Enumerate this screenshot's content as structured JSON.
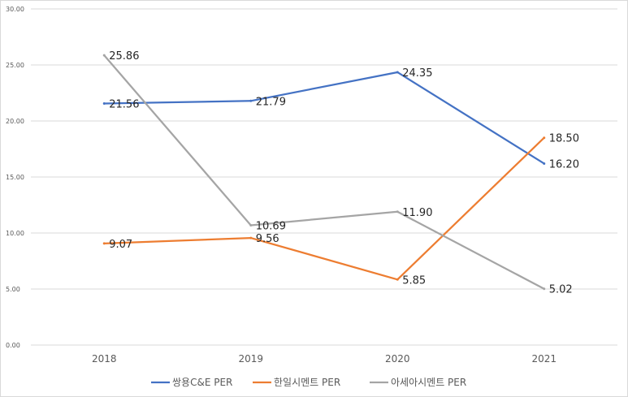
{
  "chart_data": {
    "type": "line",
    "categories": [
      "2018",
      "2019",
      "2020",
      "2021"
    ],
    "series": [
      {
        "name": "쌍용C&E PER",
        "color": "#4472c4",
        "values": [
          21.56,
          21.79,
          24.35,
          16.2
        ],
        "labels": [
          "21.56",
          "21.79",
          "24.35",
          "16.20"
        ]
      },
      {
        "name": "한일시멘트 PER",
        "color": "#ed7d31",
        "values": [
          9.07,
          9.56,
          5.85,
          18.5
        ],
        "labels": [
          "9.07",
          "9.56",
          "5.85",
          "18.50"
        ]
      },
      {
        "name": "아세아시멘트 PER",
        "color": "#a5a5a5",
        "values": [
          25.86,
          10.69,
          11.9,
          5.02
        ],
        "labels": [
          "25.86",
          "10.69",
          "11.90",
          "5.02"
        ]
      }
    ],
    "ylim": [
      0,
      30
    ],
    "yticks": [
      "0.00",
      "5.00",
      "10.00",
      "15.00",
      "20.00",
      "25.00",
      "30.00"
    ],
    "grid": true,
    "legend": "bottom"
  }
}
